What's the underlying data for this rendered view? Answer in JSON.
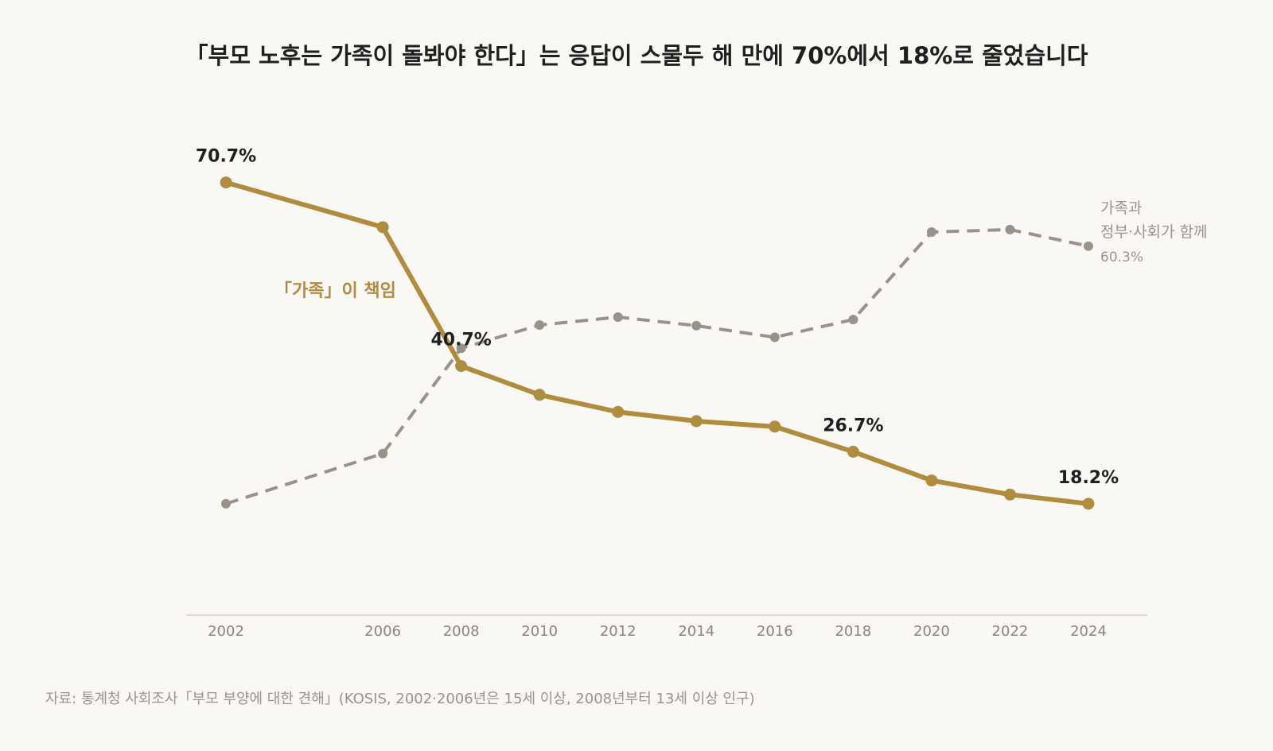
{
  "chart_data": {
    "type": "line",
    "title": "「부모 노후는 가족이 돌봐야 한다」는 응답이 스물두 해 만에 70%에서 18%로 줄었습니다",
    "x": [
      2002,
      2006,
      2008,
      2010,
      2012,
      2014,
      2016,
      2018,
      2020,
      2022,
      2024
    ],
    "x_tick_labels": [
      "2002",
      "2006",
      "2008",
      "2010",
      "2012",
      "2014",
      "2016",
      "2018",
      "2020",
      "2022",
      "2024"
    ],
    "ylim": [
      0,
      80
    ],
    "grid": false,
    "series": [
      {
        "key": "family",
        "name": "「가족」이 책임",
        "color": "#b08d3e",
        "style": "solid",
        "values": [
          70.7,
          63.4,
          40.7,
          36.0,
          33.2,
          31.7,
          30.8,
          26.7,
          22.0,
          19.7,
          18.2
        ]
      },
      {
        "key": "shared",
        "name_lines": [
          "가족과",
          "정부·사회가 함께"
        ],
        "color": "#9a918a",
        "style": "dashed",
        "end_value_label": "60.3%",
        "values": [
          18.2,
          26.4,
          43.6,
          47.4,
          48.7,
          47.3,
          45.4,
          48.3,
          62.6,
          63.0,
          60.3
        ]
      }
    ],
    "data_labels": [
      {
        "series": "family",
        "x": 2002,
        "text": "70.7%"
      },
      {
        "series": "family",
        "x": 2008,
        "text": "40.7%"
      },
      {
        "series": "family",
        "x": 2018,
        "text": "26.7%"
      },
      {
        "series": "family",
        "x": 2024,
        "text": "18.2%"
      }
    ],
    "source": "자료: 통계청 사회조사「부모 부양에 대한 견해」(KOSIS, 2002·2006년은 15세 이상, 2008년부터 13세 이상 인구)"
  }
}
